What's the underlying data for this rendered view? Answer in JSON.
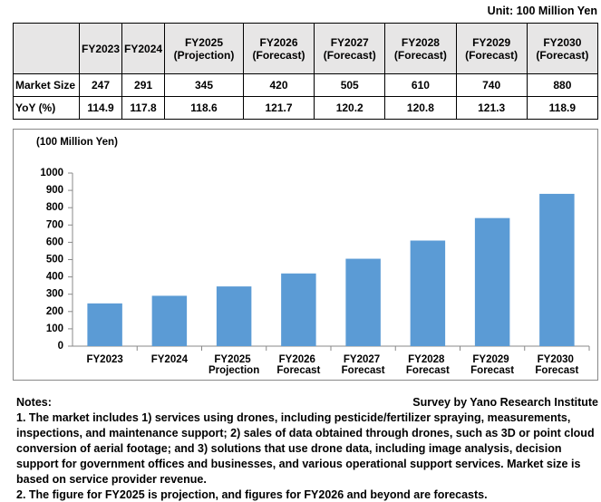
{
  "unit": "Unit: 100 Million Yen",
  "table": {
    "header": [
      "FY2023",
      "FY2024",
      "FY2025 (Projection)",
      "FY2026 (Forecast)",
      "FY2027 (Forecast)",
      "FY2028 (Forecast)",
      "FY2029 (Forecast)",
      "FY2030 (Forecast)"
    ],
    "rows": [
      [
        "Market Size",
        247,
        291,
        345,
        420,
        505,
        610,
        740,
        880
      ],
      [
        "YoY (%)",
        114.9,
        117.8,
        118.6,
        121.7,
        120.2,
        120.8,
        121.3,
        118.9
      ]
    ]
  },
  "chart_data": {
    "type": "bar",
    "y_label": "(100 Million Yen)",
    "categories": [
      "FY2023",
      "FY2024",
      "FY2025 Projection",
      "FY2026 Forecast",
      "FY2027 Forecast",
      "FY2028 Forecast",
      "FY2029 Forecast",
      "FY2030 Forecast"
    ],
    "values": [
      247,
      291,
      345,
      420,
      505,
      610,
      740,
      880
    ],
    "color": "#5b9bd5",
    "ylim": [
      0,
      1000
    ],
    "yticks": [
      0,
      100,
      200,
      300,
      400,
      500,
      600,
      700,
      800,
      900,
      1000
    ],
    "grid": false
  },
  "notes": {
    "heading": "Notes:",
    "source": "Survey by Yano Research Institute",
    "items": [
      "1. The market includes 1) services using drones, including pesticide/fertilizer spraying, measurements, inspections, and maintenance support; 2) sales of data obtained through drones, such as 3D or point cloud conversion of aerial footage; and 3) solutions that use drone data, including image analysis, decision support for government offices and businesses, and various operational support services. Market size is based on service provider revenue.",
      "2. The figure for FY2025 is projection, and figures for FY2026 and beyond are forecasts."
    ]
  }
}
